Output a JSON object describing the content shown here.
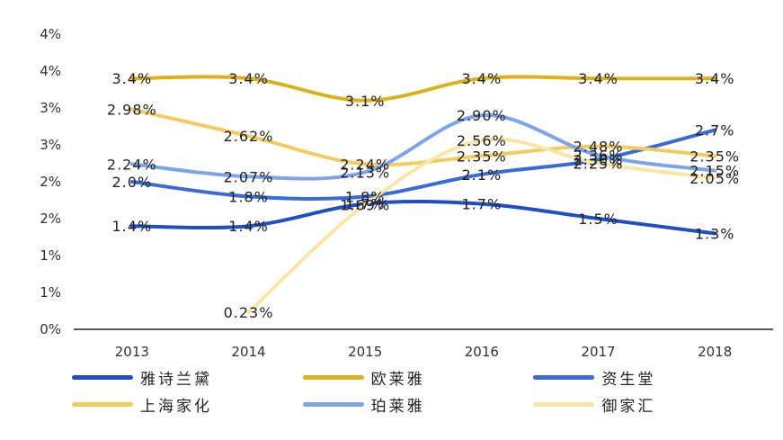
{
  "chart_data": {
    "type": "line",
    "categories": [
      "2013",
      "2014",
      "2015",
      "2016",
      "2017",
      "2018"
    ],
    "y_tick_labels": [
      "0%",
      "1%",
      "1%",
      "2%",
      "2%",
      "3%",
      "3%",
      "4%",
      "4%"
    ],
    "ylim": [
      0,
      4.0
    ],
    "smooth": true,
    "series": [
      {
        "name": "雅诗兰黛",
        "color": "#1f4fc2",
        "values": [
          1.4,
          1.4,
          1.7,
          1.7,
          1.5,
          1.3
        ],
        "labels": [
          "1.4%",
          "1.4%",
          "1.7%",
          "1.7%",
          "1.5%",
          "1.3%"
        ]
      },
      {
        "name": "欧莱雅",
        "color": "#d9b21c",
        "values": [
          3.4,
          3.4,
          3.1,
          3.4,
          3.4,
          3.4
        ],
        "labels": [
          "3.4%",
          "3.4%",
          "3.1%",
          "3.4%",
          "3.4%",
          "3.4%"
        ]
      },
      {
        "name": "资生堂",
        "color": "#3a6ad4",
        "values": [
          2.0,
          1.8,
          1.8,
          2.1,
          2.3,
          2.7
        ],
        "labels": [
          "2.0%",
          "1.8%",
          "1.8%",
          "2.1%",
          "2.30%",
          "2.7%"
        ]
      },
      {
        "name": "上海家化",
        "color": "#f0cd62",
        "values": [
          2.98,
          2.62,
          2.24,
          2.35,
          2.48,
          2.35
        ],
        "labels": [
          "2.98%",
          "2.62%",
          "2.24%",
          "2.35%",
          "2.48%",
          "2.35%"
        ]
      },
      {
        "name": "珀莱雅",
        "color": "#7da4e6",
        "values": [
          2.24,
          2.07,
          2.13,
          2.9,
          2.36,
          2.15
        ],
        "labels": [
          "2.24%",
          "2.07%",
          "2.13%",
          "2.90%",
          "2.36%",
          "2.15%"
        ]
      },
      {
        "name": "御家汇",
        "color": "#f7e6a6",
        "values": [
          null,
          0.23,
          1.69,
          2.56,
          2.25,
          2.05
        ],
        "labels": [
          null,
          "0.23%",
          "1.69%",
          "2.56%",
          "2.25%",
          "2.05%"
        ]
      }
    ]
  }
}
